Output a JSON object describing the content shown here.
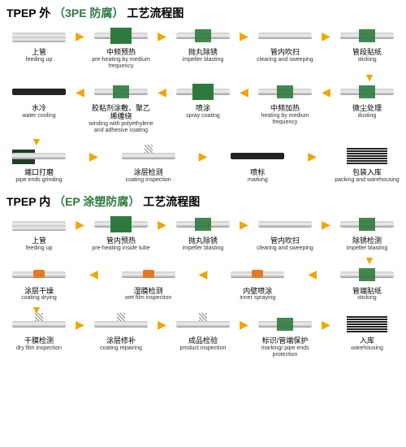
{
  "titles": {
    "t1_a": "TPEP 外",
    "t1_b": "（3PE 防腐）",
    "t1_c": "工艺流程图",
    "t2_a": "TPEP 内",
    "t2_b": "（EP 涂塑防腐）",
    "t2_c": "工艺流程图"
  },
  "colors": {
    "green": "#2d7a3e",
    "arrow": "#f0a500",
    "orange": "#e87722"
  },
  "diagram1": {
    "row1": [
      {
        "cn": "上管",
        "en": "feeding up",
        "icon": "rack"
      },
      {
        "cn": "中频预热",
        "en": "pre-heating by medium frequency",
        "icon": "greenbox"
      },
      {
        "cn": "抛丸除锈",
        "en": "impeller blasting",
        "icon": "greensm"
      },
      {
        "cn": "管内吹扫",
        "en": "clearing and sweeping",
        "icon": "pipe"
      },
      {
        "cn": "管段贴纸",
        "en": "sticking",
        "icon": "greensm"
      }
    ],
    "row2": [
      {
        "cn": "水冷",
        "en": "water cooling",
        "icon": "black"
      },
      {
        "cn": "胶粘剂涂敷、聚乙烯缠绕",
        "en": "winding with polyethylene and adhesive coating",
        "icon": "greensm"
      },
      {
        "cn": "喷涂",
        "en": "spray coating",
        "icon": "greenbox"
      },
      {
        "cn": "中频加热",
        "en": "heating by medium frequency",
        "icon": "greensm"
      },
      {
        "cn": "微尘处理",
        "en": "dusting",
        "icon": "greensm"
      }
    ],
    "row3": [
      {
        "cn": "端口打磨",
        "en": "pipe ends grinding",
        "icon": "dark"
      },
      {
        "cn": "涂层检测",
        "en": "coating inspection",
        "icon": "spring"
      },
      {
        "cn": "喷标",
        "en": "marking",
        "icon": "black"
      },
      {
        "cn": "包装入库",
        "en": "packing and warehousing",
        "icon": "stack"
      }
    ]
  },
  "diagram2": {
    "row1": [
      {
        "cn": "上管",
        "en": "feeding up",
        "icon": "rack"
      },
      {
        "cn": "管内预热",
        "en": "pre-heating inside tube",
        "icon": "greenbox"
      },
      {
        "cn": "抛丸除锈",
        "en": "impeller blasting",
        "icon": "greensm"
      },
      {
        "cn": "管内吹扫",
        "en": "clearing and sweeping",
        "icon": "pipe"
      },
      {
        "cn": "除锈检测",
        "en": "impeller blasting",
        "icon": "greensm"
      }
    ],
    "row2": [
      {
        "cn": "涂层干燥",
        "en": "coating drying",
        "icon": "orange"
      },
      {
        "cn": "湿膜检测",
        "en": "wet film inspection",
        "icon": "orange"
      },
      {
        "cn": "内壁喷涂",
        "en": "inner spraying",
        "icon": "orange"
      },
      {
        "cn": "管端贴纸",
        "en": "sticking",
        "icon": "greensm"
      }
    ],
    "row3": [
      {
        "cn": "干膜检测",
        "en": "dry film inspection",
        "icon": "spring"
      },
      {
        "cn": "涂层修补",
        "en": "coating repairing",
        "icon": "spring"
      },
      {
        "cn": "成品检验",
        "en": "product inspection",
        "icon": "spring"
      },
      {
        "cn": "标识/管端保护",
        "en": "marking/ pipe ends protection",
        "icon": "greensm"
      },
      {
        "cn": "入库",
        "en": "warehousing",
        "icon": "stack"
      }
    ]
  },
  "arrows": {
    "right": "▶",
    "left": "◀",
    "down": "▼"
  }
}
